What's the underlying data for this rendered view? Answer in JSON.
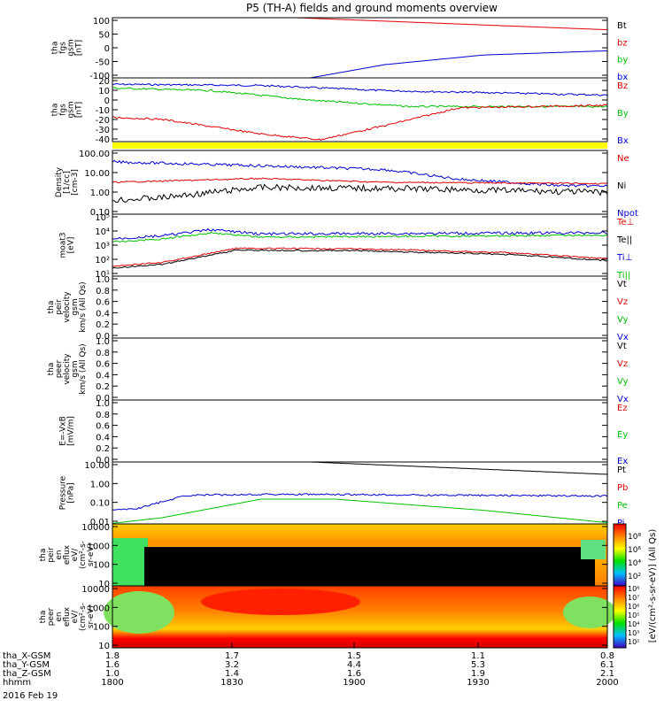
{
  "title": "P5 (TH-A) fields and ground moments overview",
  "colors": {
    "black": "#000000",
    "red": "#e00000",
    "green": "#00c000",
    "blue": "#0000d0",
    "yellow": "#ffff00"
  },
  "panels": [
    {
      "id": "fgs_gsm",
      "ylabel": [
        "tha",
        "fgs",
        "gsm",
        "[nT]"
      ],
      "ticks": [
        "100",
        "50",
        "0",
        "-50",
        "-100"
      ],
      "legend": [
        {
          "text": "Bt",
          "color": "black"
        },
        {
          "text": "bz",
          "color": "red"
        },
        {
          "text": "by",
          "color": "green"
        },
        {
          "text": "bx",
          "color": "blue"
        }
      ]
    },
    {
      "id": "fgs_gse",
      "ylabel": [
        "tha",
        "fgs",
        "gsm",
        "[nT]"
      ],
      "ticks": [
        "20",
        "10",
        "0",
        "-10",
        "-20",
        "-30",
        "-40"
      ],
      "legend": [
        {
          "text": "Bz",
          "color": "red"
        },
        {
          "text": "By",
          "color": "green"
        },
        {
          "text": "Bx",
          "color": "blue"
        }
      ]
    },
    {
      "id": "density",
      "ylabel": [
        "Density",
        "[1/cc]",
        "[cm-3]"
      ],
      "ticks": [
        "100.00",
        "10.00",
        "1.00",
        "0.10"
      ],
      "legend": [
        {
          "text": "Ne",
          "color": "red"
        },
        {
          "text": "Ni",
          "color": "black"
        },
        {
          "text": "Npot",
          "color": "blue"
        }
      ]
    },
    {
      "id": "temp",
      "ylabel": [
        "moat3",
        "[eV]"
      ],
      "ticks": [
        "10⁵",
        "10⁴",
        "10³",
        "10²",
        "10¹"
      ],
      "legend": [
        {
          "text": "Te⊥",
          "color": "red"
        },
        {
          "text": "Te||",
          "color": "black"
        },
        {
          "text": "Ti⊥",
          "color": "blue"
        },
        {
          "text": "Ti||",
          "color": "green"
        }
      ]
    },
    {
      "id": "peir_vel",
      "ylabel": [
        "tha",
        "peir",
        "velocity",
        "gsm",
        "km/s (All Qs)"
      ],
      "ticks": [
        "1.0",
        "0.8",
        "0.6",
        "0.4",
        "0.2",
        "0.0"
      ],
      "legend": [
        {
          "text": "Vt",
          "color": "black"
        },
        {
          "text": "Vz",
          "color": "red"
        },
        {
          "text": "Vy",
          "color": "green"
        },
        {
          "text": "Vx",
          "color": "blue"
        }
      ]
    },
    {
      "id": "peer_vel",
      "ylabel": [
        "tha",
        "peer",
        "velocity",
        "gsm",
        "km/s (All Qs)"
      ],
      "ticks": [
        "1.0",
        "0.8",
        "0.6",
        "0.4",
        "0.2",
        "0.0"
      ],
      "legend": [
        {
          "text": "Vt",
          "color": "black"
        },
        {
          "text": "Vz",
          "color": "red"
        },
        {
          "text": "Vy",
          "color": "green"
        },
        {
          "text": "Vx",
          "color": "blue"
        }
      ]
    },
    {
      "id": "efield",
      "ylabel": [
        "E=-VxB",
        "[mV/m]"
      ],
      "ticks": [
        "1.0",
        "0.8",
        "0.6",
        "0.4",
        "0.2",
        "0.0"
      ],
      "legend": [
        {
          "text": "Ez",
          "color": "red"
        },
        {
          "text": "Ey",
          "color": "green"
        },
        {
          "text": "Ex",
          "color": "blue"
        }
      ]
    },
    {
      "id": "pressure",
      "ylabel": [
        "Pressure",
        "[nPa]"
      ],
      "ticks": [
        "10.00",
        "1.00",
        "0.10",
        "0.01"
      ],
      "legend": [
        {
          "text": "Pt",
          "color": "black"
        },
        {
          "text": "Pb",
          "color": "red"
        },
        {
          "text": "Pe",
          "color": "green"
        },
        {
          "text": "Pi",
          "color": "blue"
        }
      ]
    },
    {
      "id": "peir_spec",
      "ylabel": [
        "tha",
        "peir",
        "en",
        "eflux",
        "eV/",
        "(cm²-s-",
        "sr-eV)"
      ],
      "ticks": [
        "10000",
        "1000",
        "100",
        "10"
      ]
    },
    {
      "id": "peer_spec",
      "ylabel": [
        "tha",
        "peer",
        "en",
        "eflux",
        "eV/",
        "(cm²-s-",
        "sr-eV)"
      ],
      "ticks": [
        "10000",
        "1000",
        "100",
        "10"
      ]
    }
  ],
  "colorbar": {
    "label": "[eV/(cm²-s-sr-eV)] (All Qs)",
    "upper_ticks": [
      "10⁸",
      "10⁶",
      "10⁴",
      "10²"
    ],
    "lower_ticks": [
      "10⁸",
      "10⁷",
      "10⁶",
      "10⁵",
      "10⁴",
      "10³",
      "10²"
    ]
  },
  "footer": {
    "rows": [
      {
        "label": "tha_X-GSM",
        "values": [
          "1.8",
          "1.7",
          "1.5",
          "1.1",
          "0.8"
        ]
      },
      {
        "label": "tha_Y-GSM",
        "values": [
          "1.6",
          "3.2",
          "4.4",
          "5.3",
          "6.1"
        ]
      },
      {
        "label": "tha_Z-GSM",
        "values": [
          "1.0",
          "1.4",
          "1.6",
          "1.9",
          "2.1"
        ]
      },
      {
        "label": "hhmm",
        "values": [
          "1800",
          "1830",
          "1900",
          "1930",
          "2000"
        ]
      }
    ],
    "date": "2016 Feb 19"
  },
  "chart_data": {
    "type": "line",
    "title": "P5 (TH-A) fields and ground moments overview",
    "x": [
      "1800",
      "1830",
      "1900",
      "1930",
      "2000"
    ],
    "series": [
      {
        "name": "bz",
        "panel": "fgs_gsm",
        "values": [
          null,
          null,
          150,
          100,
          55
        ]
      },
      {
        "name": "bx",
        "panel": "fgs_gsm",
        "values": [
          null,
          null,
          -100,
          -40,
          -5
        ]
      },
      {
        "name": "Bz",
        "panel": "fgs_gse",
        "values": [
          -20,
          -35,
          -40,
          -8,
          -5
        ]
      },
      {
        "name": "By",
        "panel": "fgs_gse",
        "values": [
          12,
          5,
          -3,
          -8,
          -5
        ]
      },
      {
        "name": "Bx",
        "panel": "fgs_gse",
        "values": [
          15,
          12,
          8,
          6,
          4
        ]
      },
      {
        "name": "Ne",
        "panel": "density",
        "values": [
          1.0,
          1.5,
          1.0,
          0.8,
          0.9
        ]
      },
      {
        "name": "Ni",
        "panel": "density",
        "values": [
          0.15,
          0.6,
          0.5,
          0.35,
          0.3
        ]
      },
      {
        "name": "Npot",
        "panel": "density",
        "values": [
          20,
          15,
          10,
          2,
          0.7
        ]
      },
      {
        "name": "Ti⊥",
        "panel": "temp",
        "values": [
          1500,
          4000,
          3500,
          4000,
          5000
        ]
      },
      {
        "name": "Ti||",
        "panel": "temp",
        "values": [
          1200,
          3500,
          3000,
          3500,
          4500
        ]
      },
      {
        "name": "Te⊥",
        "panel": "temp",
        "values": [
          30,
          300,
          200,
          180,
          100
        ]
      },
      {
        "name": "Te||",
        "panel": "temp",
        "values": [
          25,
          280,
          180,
          160,
          90
        ]
      },
      {
        "name": "Pt",
        "panel": "pressure",
        "values": [
          null,
          null,
          20,
          10,
          5
        ]
      },
      {
        "name": "Pe",
        "panel": "pressure",
        "values": [
          0.01,
          0.15,
          0.15,
          0.05,
          0.015
        ]
      },
      {
        "name": "Pi",
        "panel": "pressure",
        "values": [
          0.03,
          0.35,
          0.3,
          0.3,
          0.3
        ]
      }
    ]
  }
}
